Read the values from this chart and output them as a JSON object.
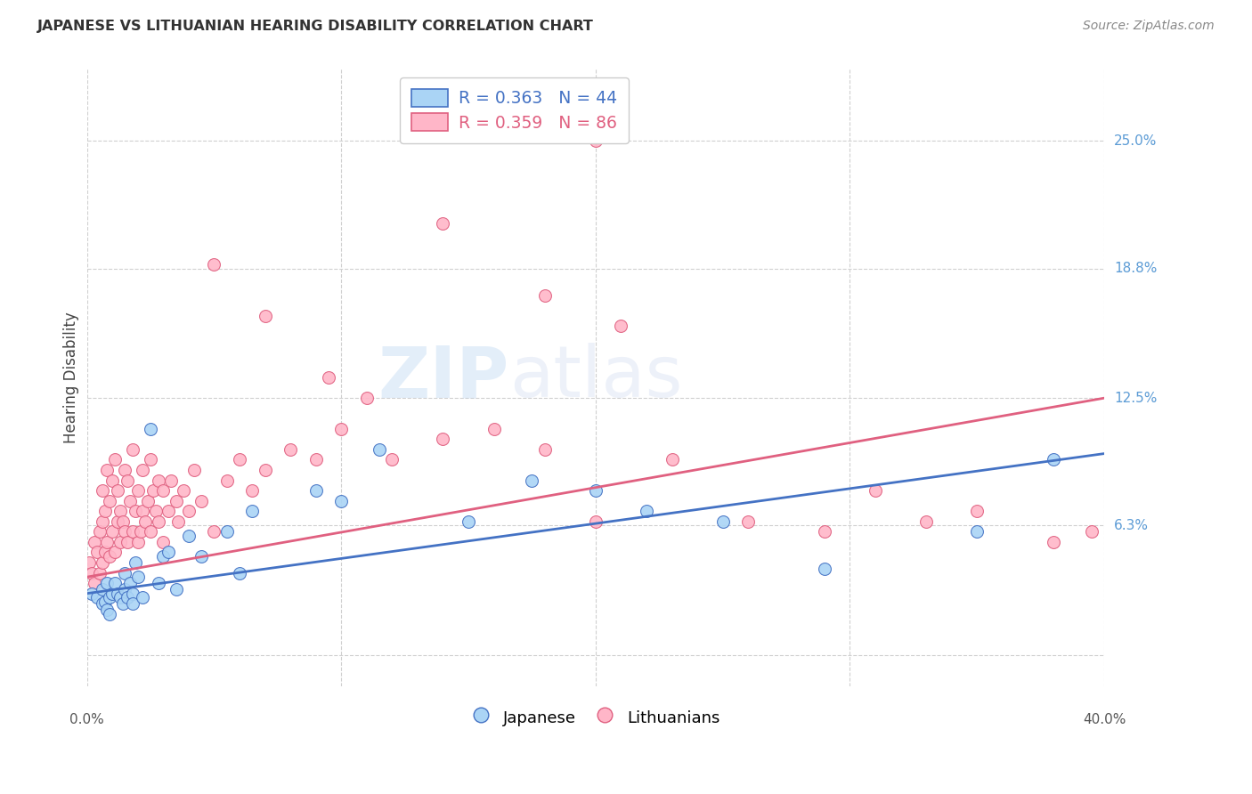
{
  "title": "JAPANESE VS LITHUANIAN HEARING DISABILITY CORRELATION CHART",
  "source": "Source: ZipAtlas.com",
  "ylabel": "Hearing Disability",
  "ytick_labels": [
    "25.0%",
    "18.8%",
    "12.5%",
    "6.3%"
  ],
  "ytick_values": [
    0.25,
    0.188,
    0.125,
    0.063
  ],
  "xlim": [
    0.0,
    0.4
  ],
  "ylim": [
    -0.015,
    0.285
  ],
  "watermark_zip": "ZIP",
  "watermark_atlas": "atlas",
  "japanese_color": "#aad4f5",
  "japanese_edge_color": "#4472C4",
  "lithuanian_color": "#ffb6c8",
  "lithuanian_edge_color": "#e06080",
  "japanese_line_color": "#4472C4",
  "lithuanian_line_color": "#e06080",
  "grid_color": "#d0d0d0",
  "right_label_color": "#5b9bd5",
  "japanese_x": [
    0.002,
    0.004,
    0.006,
    0.006,
    0.007,
    0.008,
    0.008,
    0.009,
    0.009,
    0.01,
    0.011,
    0.012,
    0.013,
    0.014,
    0.015,
    0.015,
    0.016,
    0.017,
    0.018,
    0.018,
    0.019,
    0.02,
    0.022,
    0.025,
    0.028,
    0.03,
    0.032,
    0.035,
    0.04,
    0.045,
    0.055,
    0.06,
    0.065,
    0.09,
    0.1,
    0.115,
    0.15,
    0.175,
    0.2,
    0.22,
    0.25,
    0.29,
    0.35,
    0.38
  ],
  "japanese_y": [
    0.03,
    0.028,
    0.025,
    0.032,
    0.026,
    0.022,
    0.035,
    0.028,
    0.02,
    0.03,
    0.035,
    0.03,
    0.028,
    0.025,
    0.04,
    0.032,
    0.028,
    0.035,
    0.03,
    0.025,
    0.045,
    0.038,
    0.028,
    0.11,
    0.035,
    0.048,
    0.05,
    0.032,
    0.058,
    0.048,
    0.06,
    0.04,
    0.07,
    0.08,
    0.075,
    0.1,
    0.065,
    0.085,
    0.08,
    0.07,
    0.065,
    0.042,
    0.06,
    0.095
  ],
  "lithuanian_x": [
    0.001,
    0.002,
    0.003,
    0.003,
    0.004,
    0.005,
    0.005,
    0.006,
    0.006,
    0.006,
    0.007,
    0.007,
    0.008,
    0.008,
    0.009,
    0.009,
    0.01,
    0.01,
    0.011,
    0.011,
    0.012,
    0.012,
    0.013,
    0.013,
    0.014,
    0.015,
    0.015,
    0.016,
    0.016,
    0.017,
    0.018,
    0.018,
    0.019,
    0.02,
    0.02,
    0.021,
    0.022,
    0.022,
    0.023,
    0.024,
    0.025,
    0.025,
    0.026,
    0.027,
    0.028,
    0.028,
    0.03,
    0.03,
    0.032,
    0.033,
    0.035,
    0.036,
    0.038,
    0.04,
    0.042,
    0.045,
    0.05,
    0.055,
    0.06,
    0.065,
    0.07,
    0.08,
    0.09,
    0.1,
    0.11,
    0.12,
    0.14,
    0.16,
    0.18,
    0.2,
    0.23,
    0.26,
    0.29,
    0.31,
    0.33,
    0.35,
    0.38,
    0.395,
    0.14,
    0.18,
    0.2,
    0.21,
    0.05,
    0.07,
    0.095
  ],
  "lithuanian_y": [
    0.045,
    0.04,
    0.055,
    0.035,
    0.05,
    0.06,
    0.04,
    0.065,
    0.045,
    0.08,
    0.05,
    0.07,
    0.055,
    0.09,
    0.048,
    0.075,
    0.06,
    0.085,
    0.05,
    0.095,
    0.065,
    0.08,
    0.055,
    0.07,
    0.065,
    0.06,
    0.09,
    0.055,
    0.085,
    0.075,
    0.06,
    0.1,
    0.07,
    0.055,
    0.08,
    0.06,
    0.09,
    0.07,
    0.065,
    0.075,
    0.06,
    0.095,
    0.08,
    0.07,
    0.085,
    0.065,
    0.055,
    0.08,
    0.07,
    0.085,
    0.075,
    0.065,
    0.08,
    0.07,
    0.09,
    0.075,
    0.06,
    0.085,
    0.095,
    0.08,
    0.09,
    0.1,
    0.095,
    0.11,
    0.125,
    0.095,
    0.105,
    0.11,
    0.1,
    0.065,
    0.095,
    0.065,
    0.06,
    0.08,
    0.065,
    0.07,
    0.055,
    0.06,
    0.21,
    0.175,
    0.25,
    0.16,
    0.19,
    0.165,
    0.135
  ],
  "jap_line_x0": 0.0,
  "jap_line_y0": 0.03,
  "jap_line_x1": 0.4,
  "jap_line_y1": 0.098,
  "lit_line_x0": 0.0,
  "lit_line_y0": 0.038,
  "lit_line_x1": 0.4,
  "lit_line_y1": 0.125
}
